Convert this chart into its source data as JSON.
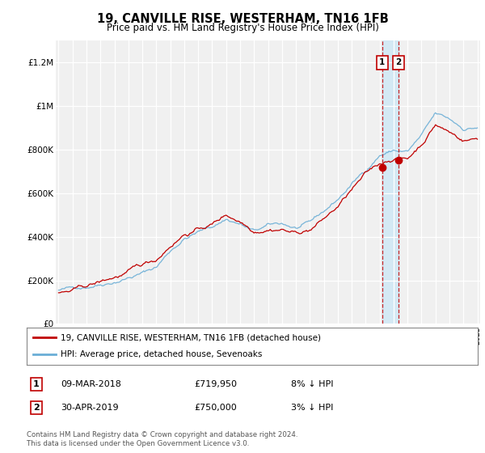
{
  "title": "19, CANVILLE RISE, WESTERHAM, TN16 1FB",
  "subtitle": "Price paid vs. HM Land Registry's House Price Index (HPI)",
  "ylabel_ticks": [
    "£0",
    "£200K",
    "£400K",
    "£600K",
    "£800K",
    "£1M",
    "£1.2M"
  ],
  "ytick_values": [
    0,
    200000,
    400000,
    600000,
    800000,
    1000000,
    1200000
  ],
  "ylim": [
    0,
    1300000
  ],
  "xlim_start": 1995,
  "xlim_end": 2025,
  "hpi_color": "#6aaed6",
  "price_color": "#c00000",
  "marker1_date_x": 2018.17,
  "marker1_y": 719950,
  "marker2_date_x": 2019.33,
  "marker2_y": 750000,
  "shade_color": "#d0e8f5",
  "legend_line1": "19, CANVILLE RISE, WESTERHAM, TN16 1FB (detached house)",
  "legend_line2": "HPI: Average price, detached house, Sevenoaks",
  "transaction1_date": "09-MAR-2018",
  "transaction1_price": "£719,950",
  "transaction1_info": "8% ↓ HPI",
  "transaction2_date": "30-APR-2019",
  "transaction2_price": "£750,000",
  "transaction2_info": "3% ↓ HPI",
  "footnote": "Contains HM Land Registry data © Crown copyright and database right 2024.\nThis data is licensed under the Open Government Licence v3.0.",
  "background_color": "#ffffff",
  "plot_bg_color": "#f0f0f0"
}
